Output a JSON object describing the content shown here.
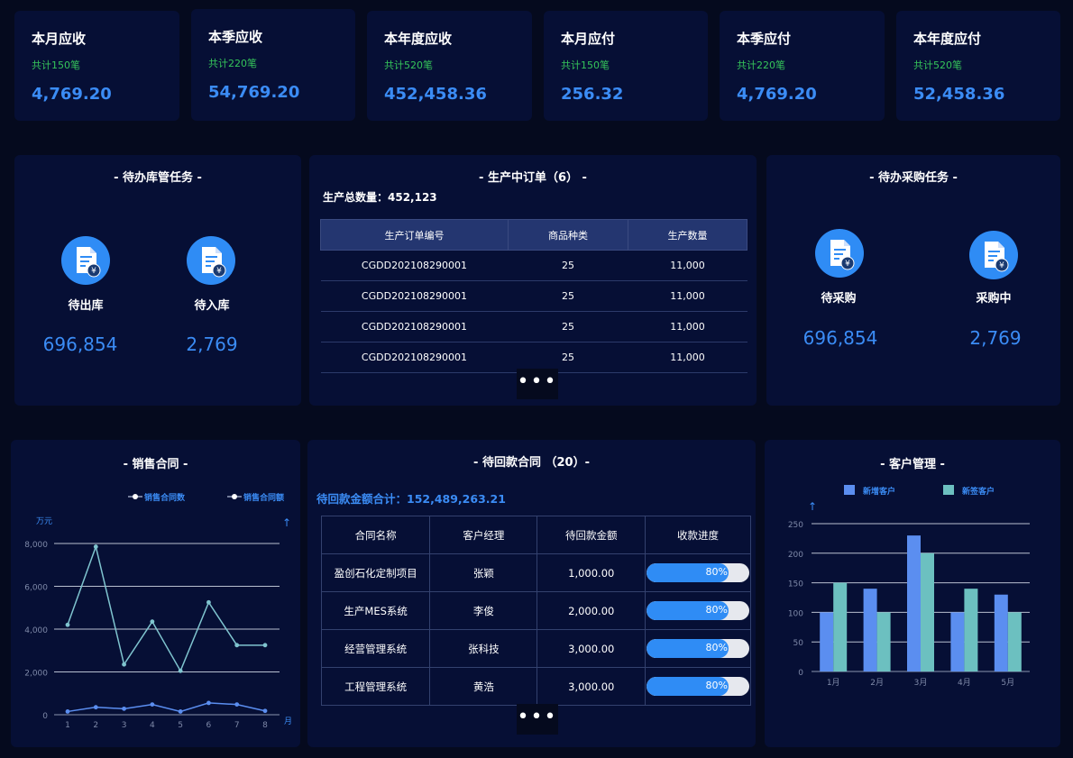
{
  "stats": [
    {
      "label": "本月应收",
      "sub": "共计150笔",
      "value": "4,769.20"
    },
    {
      "label": "本季应收",
      "sub": "共计220笔",
      "value": "54,769.20"
    },
    {
      "label": "本年度应收",
      "sub": "共计520笔",
      "value": "452,458.36"
    },
    {
      "label": "本月应付",
      "sub": "共计150笔",
      "value": "256.32"
    },
    {
      "label": "本季应付",
      "sub": "共计220笔",
      "value": "4,769.20"
    },
    {
      "label": "本年度应付",
      "sub": "共计520笔",
      "value": "52,458.36"
    }
  ],
  "warehouse": {
    "title": "- 待办库管任务 -",
    "items": [
      {
        "label": "待出库",
        "value": "696,854"
      },
      {
        "label": "待入库",
        "value": "2,769"
      }
    ]
  },
  "orders": {
    "title": "- 生产中订单（6） -",
    "total": "生产总数量：452,123",
    "headers": [
      "生产订单编号",
      "商品种类",
      "生产数量"
    ],
    "rows": [
      [
        "CGDD202108290001",
        "25",
        "11,000"
      ],
      [
        "CGDD202108290001",
        "25",
        "11,000"
      ],
      [
        "CGDD202108290001",
        "25",
        "11,000"
      ],
      [
        "CGDD202108290001",
        "25",
        "11,000"
      ]
    ],
    "more": "•••"
  },
  "purchase": {
    "title": "- 待办采购任务 -",
    "items": [
      {
        "label": "待采购",
        "value": "696,854"
      },
      {
        "label": "采购中",
        "value": "2,769"
      }
    ]
  },
  "sales": {
    "title": "- 销售合同 -",
    "chart_data": {
      "type": "line",
      "x": [
        1,
        2,
        3,
        4,
        5,
        6,
        7,
        8
      ],
      "series": [
        {
          "name": "销售合同数",
          "values": [
            150,
            350,
            280,
            480,
            150,
            550,
            480,
            180
          ]
        },
        {
          "name": "销售合同额",
          "values": [
            4200,
            7850,
            2350,
            4350,
            2050,
            5250,
            3250,
            3250
          ]
        }
      ],
      "ylabel": "万元",
      "xlabel": "月",
      "ylim": [
        0,
        8000
      ],
      "yticks": [
        "0",
        "2,000",
        "4,000",
        "6,000",
        "8,000"
      ],
      "arrow": "↑"
    }
  },
  "contracts": {
    "title": "- 待回款合同 （20）-",
    "total": "待回款金额合计：152,489,263.21",
    "headers": [
      "合同名称",
      "客户经理",
      "待回款金额",
      "收款进度"
    ],
    "rows": [
      {
        "name": "盈创石化定制项目",
        "manager": "张颖",
        "amount": "1,000.00",
        "progress": 0.8,
        "progress_text": "80%"
      },
      {
        "name": "生产MES系统",
        "manager": "李俊",
        "amount": "2,000.00",
        "progress": 0.8,
        "progress_text": "80%"
      },
      {
        "name": "经营管理系统",
        "manager": "张科技",
        "amount": "3,000.00",
        "progress": 0.8,
        "progress_text": "80%"
      },
      {
        "name": "工程管理系统",
        "manager": "黄浩",
        "amount": "3,000.00",
        "progress": 0.8,
        "progress_text": "80%"
      }
    ],
    "more": "•••"
  },
  "customers": {
    "title": "- 客户管理 -",
    "chart_data": {
      "type": "bar",
      "categories": [
        "1月",
        "2月",
        "3月",
        "4月",
        "5月"
      ],
      "series": [
        {
          "name": "新增客户",
          "values": [
            100,
            140,
            230,
            100,
            130
          ],
          "color": "#5b8ef0"
        },
        {
          "name": "新签客户",
          "values": [
            150,
            100,
            200,
            140,
            100
          ],
          "color": "#6cc0c0"
        }
      ],
      "ylim": [
        0,
        250
      ],
      "yticks": [
        "0",
        "50",
        "100",
        "150",
        "200",
        "250"
      ],
      "arrow": "↑"
    }
  }
}
